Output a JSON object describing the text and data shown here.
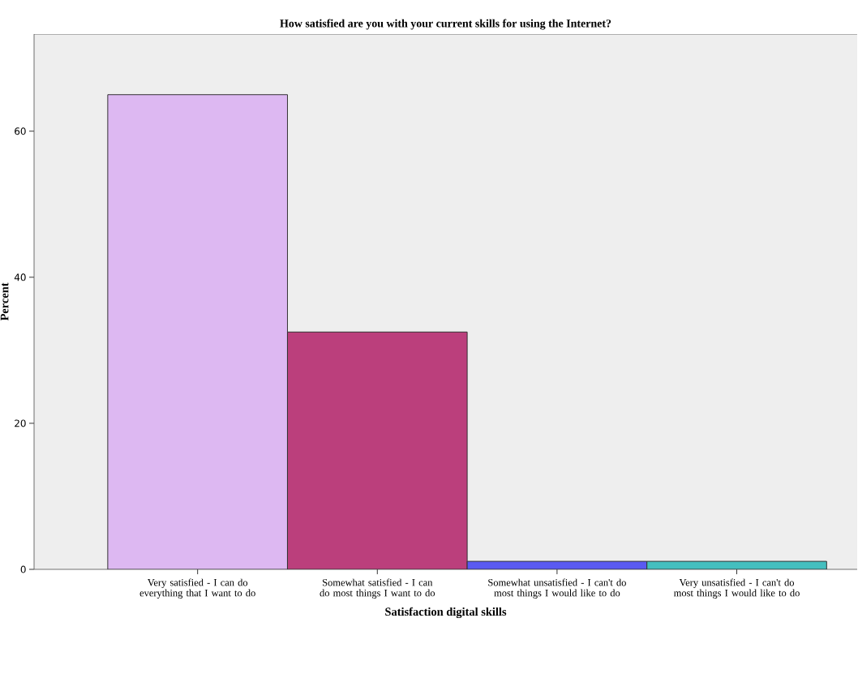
{
  "chart_data": {
    "type": "bar",
    "title": "How satisfied are you with your current skills for using the Internet?",
    "xlabel": "Satisfaction digital skills",
    "ylabel": "Percent",
    "categories": [
      "Very satisfied - I can do everything that I want to do",
      "Somewhat satisfied - I can do most things I want to do",
      "Somewhat unsatisfied - I can't do most things I would like to do",
      "Very unsatisfied - I can't do most things I would like to do"
    ],
    "values": [
      65.0,
      32.5,
      1.1,
      1.1
    ],
    "colors": [
      "#ddb8f2",
      "#bb3f7c",
      "#5a5af2",
      "#44bfbf"
    ],
    "ylim": [
      0,
      73.3
    ],
    "yticks": [
      0,
      20,
      40,
      60
    ]
  }
}
